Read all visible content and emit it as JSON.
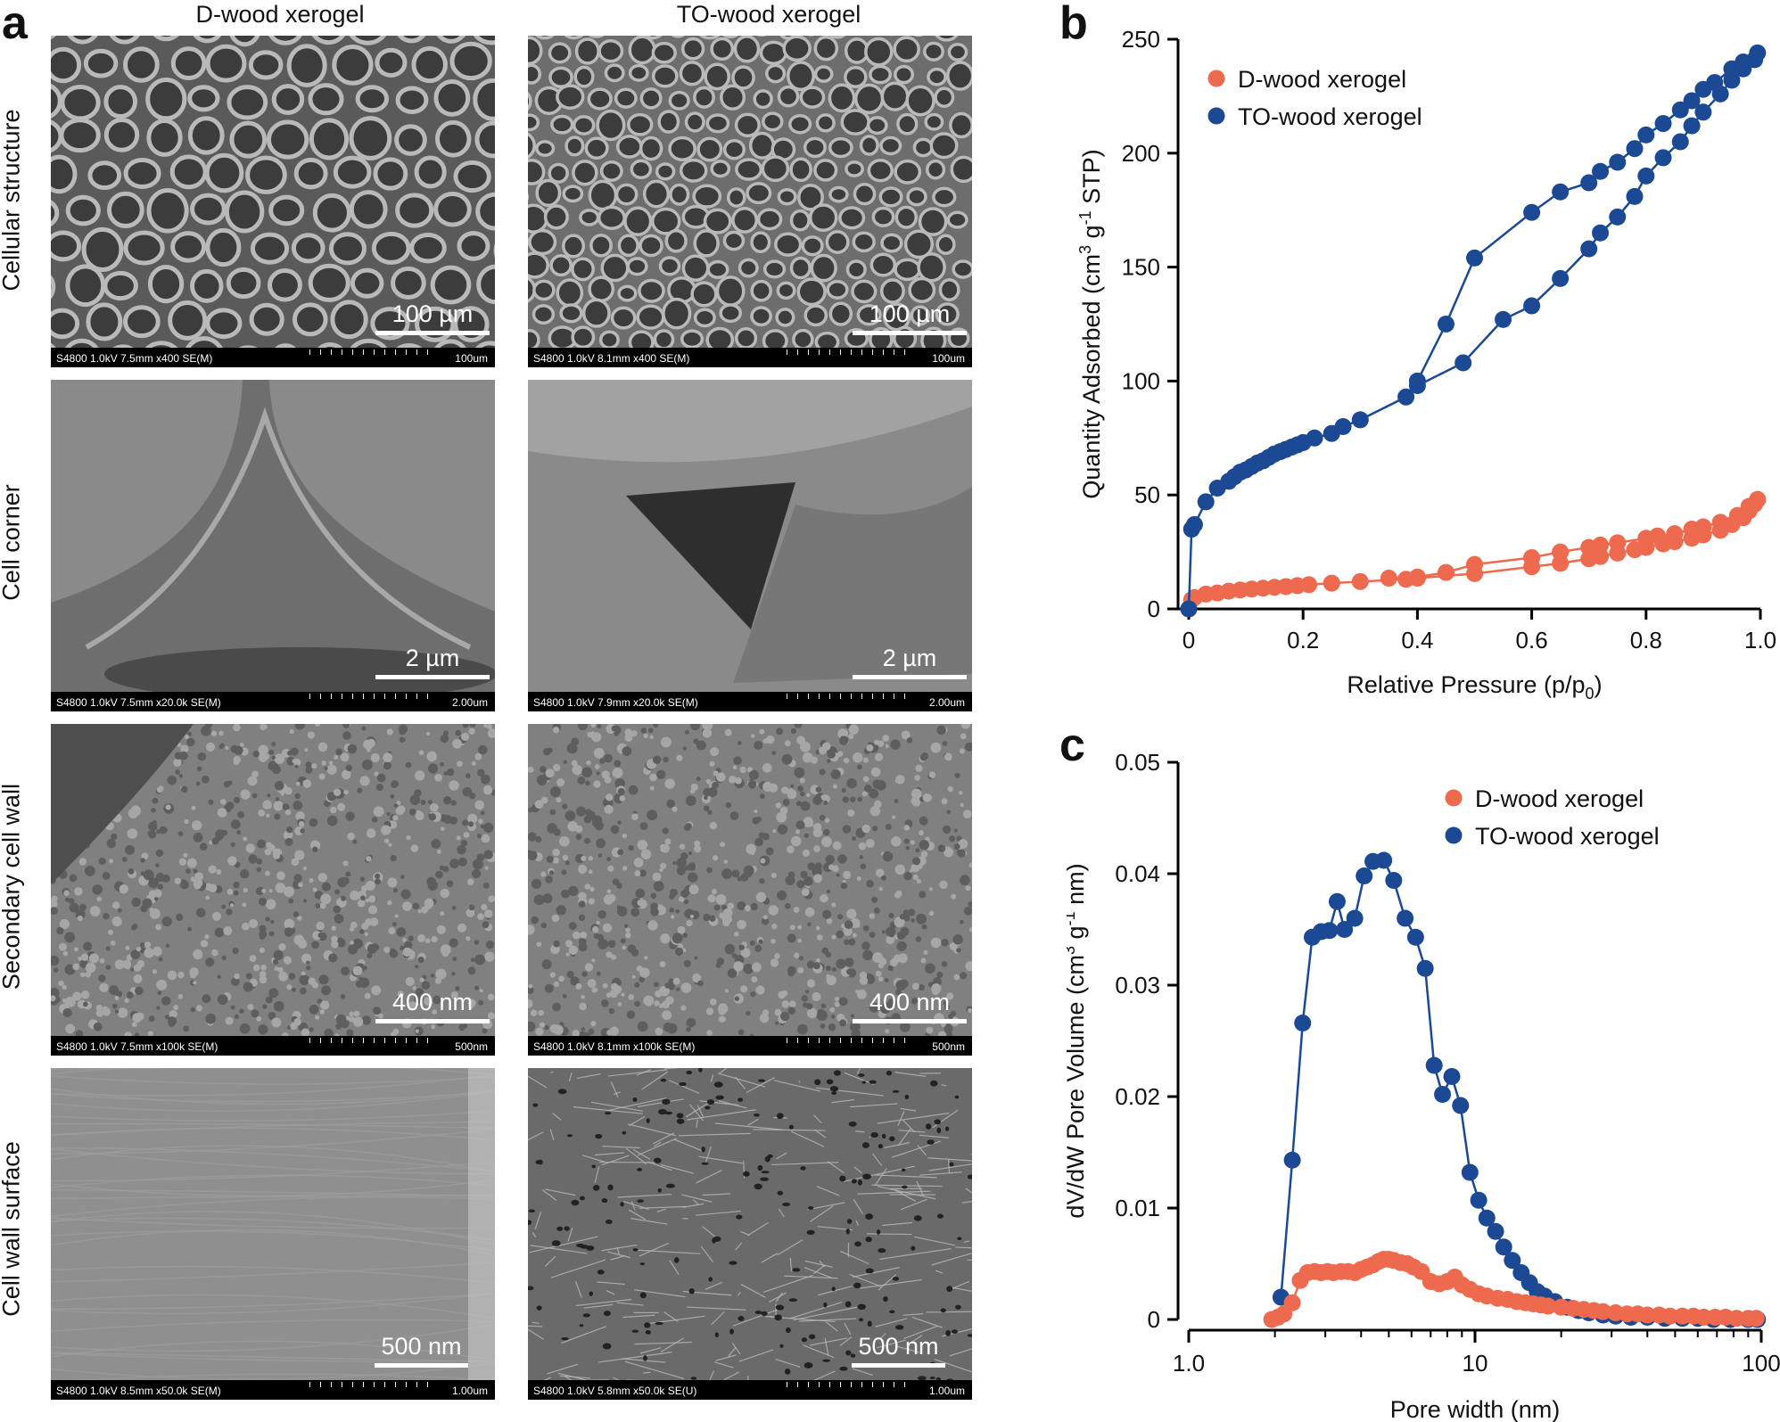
{
  "panels": {
    "a": "a",
    "b": "b",
    "c": "c"
  },
  "micrographs": {
    "columns": [
      "D-wood xerogel",
      "TO-wood xerogel"
    ],
    "rows": [
      "Cellular structure",
      "Cell corner",
      "Secondary cell wall",
      "Cell wall surface"
    ],
    "images": [
      [
        {
          "scale_bar": "100 µm",
          "meta": "S4800 1.0kV 7.5mm x400 SE(M)",
          "fov": "100um",
          "texture": "cells"
        },
        {
          "scale_bar": "2 µm",
          "meta": "S4800 1.0kV 7.5mm x20.0k SE(M)",
          "fov": "2.00um",
          "texture": "corner"
        },
        {
          "scale_bar": "400 nm",
          "meta": "S4800 1.0kV 7.5mm x100k SE(M)",
          "fov": "500nm",
          "texture": "grain"
        },
        {
          "scale_bar": "500 nm",
          "meta": "S4800 1.0kV 8.5mm x50.0k SE(M)",
          "fov": "1.00um",
          "texture": "smooth"
        }
      ],
      [
        {
          "scale_bar": "100 µm",
          "meta": "S4800 1.0kV 8.1mm x400 SE(M)",
          "fov": "100um",
          "texture": "cells-fine"
        },
        {
          "scale_bar": "2 µm",
          "meta": "S4800 1.0kV 7.9mm x20.0k SE(M)",
          "fov": "2.00um",
          "texture": "corner2"
        },
        {
          "scale_bar": "400 nm",
          "meta": "S4800 1.0kV 8.1mm x100k SE(M)",
          "fov": "500nm",
          "texture": "grain"
        },
        {
          "scale_bar": "500 nm",
          "meta": "S4800 1.0kV 5.8mm x50.0k SE(U)",
          "fov": "1.00um",
          "texture": "fibers"
        }
      ]
    ]
  },
  "colors": {
    "d_wood": "#ee6a4e",
    "to_wood": "#1b4994"
  },
  "chart_data": [
    {
      "type": "scatter",
      "panel": "b",
      "xlabel": "Relative Pressure (p/p0)",
      "ylabel": "Quantity Adsorbed (cm3 g-1 STP)",
      "xlim": [
        0,
        1.0
      ],
      "ylim": [
        0,
        250
      ],
      "xticks": [
        "0",
        "0.2",
        "0.4",
        "0.6",
        "0.8",
        "1.0"
      ],
      "yticks": [
        "0",
        "50",
        "100",
        "150",
        "200",
        "250"
      ],
      "legend_position": "top-left",
      "series": [
        {
          "name": "D-wood xerogel",
          "color": "#ee6a4e",
          "adsorption": [
            [
              0,
              0
            ],
            [
              0.005,
              4
            ],
            [
              0.01,
              5
            ],
            [
              0.03,
              6.5
            ],
            [
              0.05,
              7
            ],
            [
              0.07,
              7.8
            ],
            [
              0.09,
              8.3
            ],
            [
              0.11,
              8.7
            ],
            [
              0.13,
              9.1
            ],
            [
              0.15,
              9.5
            ],
            [
              0.17,
              9.8
            ],
            [
              0.19,
              10.2
            ],
            [
              0.21,
              10.6
            ],
            [
              0.25,
              11.3
            ],
            [
              0.3,
              12
            ],
            [
              0.38,
              13
            ],
            [
              0.4,
              13.5
            ],
            [
              0.5,
              15.5
            ],
            [
              0.6,
              18.5
            ],
            [
              0.65,
              20
            ],
            [
              0.7,
              22
            ],
            [
              0.72,
              23
            ],
            [
              0.75,
              24.5
            ],
            [
              0.78,
              26
            ],
            [
              0.8,
              27
            ],
            [
              0.83,
              28.5
            ],
            [
              0.85,
              29.5
            ],
            [
              0.88,
              31
            ],
            [
              0.9,
              32.5
            ],
            [
              0.93,
              34.5
            ],
            [
              0.95,
              37
            ],
            [
              0.97,
              40
            ],
            [
              0.98,
              43
            ],
            [
              0.99,
              46
            ],
            [
              0.995,
              48
            ]
          ],
          "desorption": [
            [
              0.995,
              48
            ],
            [
              0.98,
              45
            ],
            [
              0.96,
              41
            ],
            [
              0.93,
              38
            ],
            [
              0.9,
              36
            ],
            [
              0.88,
              35
            ],
            [
              0.85,
              33
            ],
            [
              0.82,
              32
            ],
            [
              0.8,
              31
            ],
            [
              0.75,
              29
            ],
            [
              0.72,
              28
            ],
            [
              0.7,
              27
            ],
            [
              0.65,
              25
            ],
            [
              0.6,
              22.5
            ],
            [
              0.5,
              19.5
            ],
            [
              0.45,
              16
            ],
            [
              0.4,
              14
            ],
            [
              0.35,
              13.5
            ]
          ]
        },
        {
          "name": "TO-wood xerogel",
          "color": "#1b4994",
          "adsorption": [
            [
              0,
              0
            ],
            [
              0.005,
              35
            ],
            [
              0.01,
              37
            ],
            [
              0.03,
              47
            ],
            [
              0.05,
              53
            ],
            [
              0.07,
              56
            ],
            [
              0.08,
              58
            ],
            [
              0.09,
              60
            ],
            [
              0.1,
              61
            ],
            [
              0.11,
              62.5
            ],
            [
              0.12,
              64
            ],
            [
              0.13,
              65
            ],
            [
              0.14,
              66.5
            ],
            [
              0.15,
              68
            ],
            [
              0.16,
              69
            ],
            [
              0.17,
              70
            ],
            [
              0.18,
              71
            ],
            [
              0.19,
              72
            ],
            [
              0.2,
              73
            ],
            [
              0.22,
              75
            ],
            [
              0.25,
              77
            ],
            [
              0.27,
              80
            ],
            [
              0.3,
              83
            ],
            [
              0.38,
              93
            ],
            [
              0.4,
              98
            ],
            [
              0.48,
              108
            ],
            [
              0.55,
              127
            ],
            [
              0.6,
              133
            ],
            [
              0.65,
              145
            ],
            [
              0.7,
              158
            ],
            [
              0.72,
              165
            ],
            [
              0.75,
              172
            ],
            [
              0.78,
              181
            ],
            [
              0.8,
              190
            ],
            [
              0.83,
              198
            ],
            [
              0.86,
              205
            ],
            [
              0.88,
              212
            ],
            [
              0.9,
              218
            ],
            [
              0.93,
              226
            ],
            [
              0.95,
              232
            ],
            [
              0.97,
              237
            ],
            [
              0.99,
              241
            ]
          ],
          "desorption": [
            [
              0.995,
              244
            ],
            [
              0.97,
              240
            ],
            [
              0.95,
              237
            ],
            [
              0.92,
              231
            ],
            [
              0.9,
              228
            ],
            [
              0.88,
              223
            ],
            [
              0.86,
              219
            ],
            [
              0.83,
              213
            ],
            [
              0.8,
              208
            ],
            [
              0.78,
              202
            ],
            [
              0.75,
              196
            ],
            [
              0.72,
              192
            ],
            [
              0.7,
              187
            ],
            [
              0.65,
              183
            ],
            [
              0.6,
              174
            ],
            [
              0.5,
              154
            ],
            [
              0.45,
              125
            ],
            [
              0.4,
              100
            ]
          ]
        }
      ]
    },
    {
      "type": "line",
      "panel": "c",
      "xscale": "log",
      "xlabel": "Pore width (nm)",
      "ylabel": "dV/dW Pore Volume (cm3 g-1 nm)",
      "xlim": [
        1,
        100
      ],
      "ylim": [
        0,
        0.05
      ],
      "xticks": [
        "1.0",
        "10",
        "100"
      ],
      "yticks": [
        "0",
        "0.01",
        "0.02",
        "0.03",
        "0.04",
        "0.05"
      ],
      "legend_position": "top-right",
      "series": [
        {
          "name": "D-wood xerogel",
          "color": "#ee6a4e",
          "points": [
            [
              1.95,
              0
            ],
            [
              2.05,
              0.0002
            ],
            [
              2.15,
              0.0005
            ],
            [
              2.3,
              0.0015
            ],
            [
              2.45,
              0.0035
            ],
            [
              2.6,
              0.0042
            ],
            [
              2.75,
              0.0043
            ],
            [
              2.9,
              0.0042
            ],
            [
              3.05,
              0.0043
            ],
            [
              3.2,
              0.0042
            ],
            [
              3.4,
              0.0043
            ],
            [
              3.6,
              0.0043
            ],
            [
              3.8,
              0.0042
            ],
            [
              4.0,
              0.0045
            ],
            [
              4.2,
              0.0047
            ],
            [
              4.4,
              0.0049
            ],
            [
              4.6,
              0.0052
            ],
            [
              4.8,
              0.0054
            ],
            [
              5.0,
              0.0054
            ],
            [
              5.2,
              0.0053
            ],
            [
              5.5,
              0.0051
            ],
            [
              5.8,
              0.005
            ],
            [
              6.1,
              0.0047
            ],
            [
              6.5,
              0.0043
            ],
            [
              7.0,
              0.0034
            ],
            [
              7.5,
              0.0032
            ],
            [
              8.0,
              0.0034
            ],
            [
              8.5,
              0.0038
            ],
            [
              9.0,
              0.0031
            ],
            [
              9.6,
              0.0027
            ],
            [
              10.3,
              0.0023
            ],
            [
              11,
              0.0021
            ],
            [
              12,
              0.0019
            ],
            [
              13,
              0.0018
            ],
            [
              14,
              0.0016
            ],
            [
              15,
              0.0015
            ],
            [
              16,
              0.0014
            ],
            [
              17,
              0.0013
            ],
            [
              18,
              0.0012
            ],
            [
              20,
              0.0011
            ],
            [
              22,
              0.001
            ],
            [
              24,
              0.0009
            ],
            [
              26,
              0.0008
            ],
            [
              28,
              0.0007
            ],
            [
              31,
              0.0006
            ],
            [
              34,
              0.0005
            ],
            [
              37,
              0.0005
            ],
            [
              40,
              0.0004
            ],
            [
              44,
              0.0004
            ],
            [
              48,
              0.0003
            ],
            [
              53,
              0.0003
            ],
            [
              58,
              0.0003
            ],
            [
              63,
              0.0002
            ],
            [
              69,
              0.0002
            ],
            [
              75,
              0.0002
            ],
            [
              82,
              0.0001
            ],
            [
              90,
              0.0001
            ],
            [
              96,
              0.0001
            ]
          ]
        },
        {
          "name": "TO-wood xerogel",
          "color": "#1b4994",
          "points": [
            [
              2.1,
              0.002
            ],
            [
              2.3,
              0.0143
            ],
            [
              2.5,
              0.0266
            ],
            [
              2.7,
              0.0343
            ],
            [
              2.9,
              0.0348
            ],
            [
              3.1,
              0.0349
            ],
            [
              3.3,
              0.0375
            ],
            [
              3.5,
              0.035
            ],
            [
              3.8,
              0.036
            ],
            [
              4.1,
              0.0398
            ],
            [
              4.4,
              0.0411
            ],
            [
              4.8,
              0.0412
            ],
            [
              5.2,
              0.0394
            ],
            [
              5.7,
              0.036
            ],
            [
              6.2,
              0.0343
            ],
            [
              6.7,
              0.0315
            ],
            [
              7.2,
              0.0228
            ],
            [
              7.7,
              0.0202
            ],
            [
              8.3,
              0.0218
            ],
            [
              8.9,
              0.0192
            ],
            [
              9.6,
              0.0132
            ],
            [
              10.3,
              0.0107
            ],
            [
              11,
              0.0091
            ],
            [
              11.8,
              0.0079
            ],
            [
              12.6,
              0.0065
            ],
            [
              13.5,
              0.0053
            ],
            [
              14.5,
              0.0042
            ],
            [
              15.5,
              0.0033
            ],
            [
              16.5,
              0.0025
            ],
            [
              17.5,
              0.0021
            ],
            [
              19,
              0.0016
            ],
            [
              21,
              0.0011
            ],
            [
              23,
              0.0008
            ],
            [
              25,
              0.0006
            ],
            [
              28,
              0.0004
            ],
            [
              31,
              0.0003
            ],
            [
              35,
              0.0002
            ],
            [
              40,
              0.0002
            ],
            [
              46,
              0.0001
            ],
            [
              53,
              0.0001
            ],
            [
              60,
              0.0001
            ],
            [
              68,
              0
            ],
            [
              78,
              0
            ],
            [
              90,
              0
            ],
            [
              97,
              0
            ]
          ]
        }
      ]
    }
  ]
}
